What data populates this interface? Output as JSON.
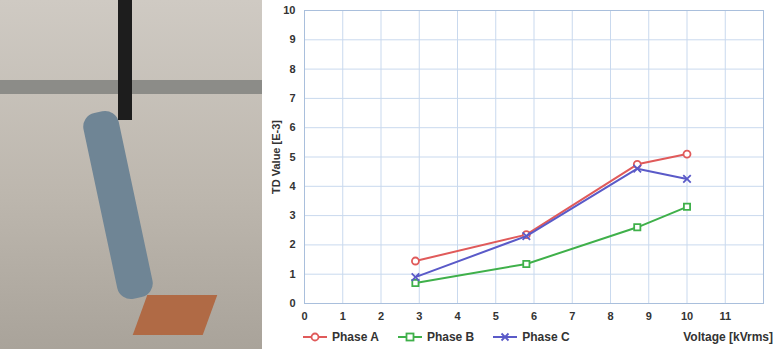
{
  "chart_data": {
    "type": "line",
    "x_label": "Voltage [kVrms]",
    "y_label": "TD Value [E-3]",
    "x": [
      2.9,
      5.8,
      8.7,
      10
    ],
    "series": [
      {
        "name": "Phase A",
        "color": "#e05a5a",
        "marker": "circle",
        "values": [
          1.45,
          2.35,
          4.75,
          5.1
        ]
      },
      {
        "name": "Phase B",
        "color": "#3fb04a",
        "marker": "square",
        "values": [
          0.7,
          1.35,
          2.6,
          3.3
        ]
      },
      {
        "name": "Phase C",
        "color": "#5a5ac8",
        "marker": "x",
        "values": [
          0.9,
          2.3,
          4.6,
          4.25
        ]
      }
    ],
    "xlim": [
      0,
      12
    ],
    "xticks": [
      0,
      1,
      2,
      3,
      4,
      5,
      6,
      7,
      8,
      9,
      10,
      11
    ],
    "ylim": [
      0,
      10
    ],
    "yticks": [
      0,
      1,
      2,
      3,
      4,
      5,
      6,
      7,
      8,
      9,
      10
    ],
    "grid": true,
    "legend": "bottom"
  }
}
